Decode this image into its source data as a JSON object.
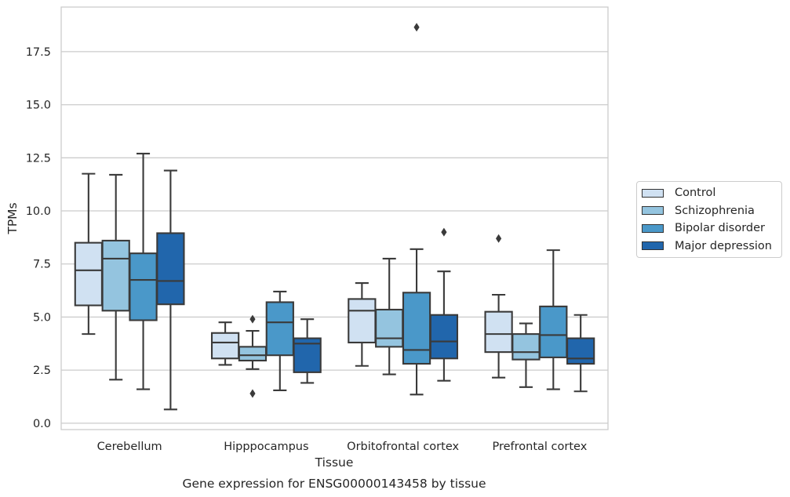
{
  "chart_data": {
    "type": "boxplot",
    "title": "Gene expression for ENSG00000143458 by tissue",
    "xlabel": "Tissue",
    "ylabel": "TPMs",
    "ylim": [
      -0.3,
      19.6
    ],
    "yticks": [
      "0.0",
      "2.5",
      "5.0",
      "7.5",
      "10.0",
      "12.5",
      "15.0",
      "17.5"
    ],
    "categories": [
      "Cerebellum",
      "Hipppocampus",
      "Orbitofrontal cortex",
      "Prefrontal cortex"
    ],
    "grid": true,
    "legend_position": "right",
    "series": [
      {
        "name": "Control",
        "color": "#d0e1f2",
        "boxes": [
          {
            "whislo": 4.2,
            "q1": 5.55,
            "med": 7.2,
            "q3": 8.5,
            "whishi": 11.75,
            "fliers": []
          },
          {
            "whislo": 2.75,
            "q1": 3.05,
            "med": 3.8,
            "q3": 4.25,
            "whishi": 4.75,
            "fliers": []
          },
          {
            "whislo": 2.7,
            "q1": 3.8,
            "med": 5.3,
            "q3": 5.85,
            "whishi": 6.6,
            "fliers": []
          },
          {
            "whislo": 2.15,
            "q1": 3.35,
            "med": 4.2,
            "q3": 5.25,
            "whishi": 6.05,
            "fliers": [
              8.7
            ]
          }
        ]
      },
      {
        "name": "Schizophrenia",
        "color": "#94c4df",
        "boxes": [
          {
            "whislo": 2.05,
            "q1": 5.3,
            "med": 7.75,
            "q3": 8.6,
            "whishi": 11.7,
            "fliers": []
          },
          {
            "whislo": 2.55,
            "q1": 2.95,
            "med": 3.2,
            "q3": 3.6,
            "whishi": 4.35,
            "fliers": [
              4.9,
              1.4
            ]
          },
          {
            "whislo": 2.3,
            "q1": 3.6,
            "med": 4.0,
            "q3": 5.35,
            "whishi": 7.75,
            "fliers": []
          },
          {
            "whislo": 1.7,
            "q1": 3.0,
            "med": 3.35,
            "q3": 4.2,
            "whishi": 4.7,
            "fliers": []
          }
        ]
      },
      {
        "name": "Bipolar disorder",
        "color": "#4a98c9",
        "boxes": [
          {
            "whislo": 1.6,
            "q1": 4.85,
            "med": 6.75,
            "q3": 8.0,
            "whishi": 12.7,
            "fliers": []
          },
          {
            "whislo": 1.55,
            "q1": 3.2,
            "med": 4.75,
            "q3": 5.7,
            "whishi": 6.2,
            "fliers": []
          },
          {
            "whislo": 1.35,
            "q1": 2.8,
            "med": 3.45,
            "q3": 6.15,
            "whishi": 8.2,
            "fliers": [
              18.65
            ]
          },
          {
            "whislo": 1.6,
            "q1": 3.1,
            "med": 4.15,
            "q3": 5.5,
            "whishi": 8.15,
            "fliers": []
          }
        ]
      },
      {
        "name": "Major depression",
        "color": "#2166ac",
        "boxes": [
          {
            "whislo": 0.65,
            "q1": 5.6,
            "med": 6.7,
            "q3": 8.95,
            "whishi": 11.9,
            "fliers": []
          },
          {
            "whislo": 1.9,
            "q1": 2.4,
            "med": 3.75,
            "q3": 4.0,
            "whishi": 4.9,
            "fliers": []
          },
          {
            "whislo": 2.0,
            "q1": 3.05,
            "med": 3.85,
            "q3": 5.1,
            "whishi": 7.15,
            "fliers": [
              9.0
            ]
          },
          {
            "whislo": 1.5,
            "q1": 2.8,
            "med": 3.05,
            "q3": 4.0,
            "whishi": 5.1,
            "fliers": []
          }
        ]
      }
    ]
  }
}
